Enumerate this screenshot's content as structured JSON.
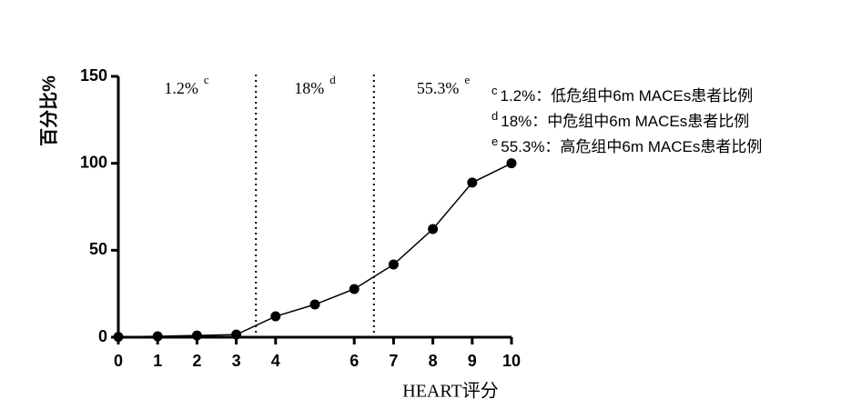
{
  "chart_data": {
    "type": "line",
    "x": [
      0,
      1,
      2,
      3,
      4,
      5,
      6,
      7,
      8,
      9,
      10
    ],
    "series": [
      {
        "color": "#000000",
        "values": [
          0.2,
          0.5,
          1,
          1.5,
          12,
          18.8,
          27.7,
          41.8,
          62.2,
          88.9,
          100
        ]
      }
    ],
    "xlim": [
      0,
      10
    ],
    "xticks": [
      0,
      1,
      2,
      3,
      4,
      6,
      7,
      8,
      9,
      10
    ],
    "ylim": [
      0,
      150
    ],
    "yticks": [
      0,
      50,
      100,
      150
    ],
    "xlabel": "HEART评分",
    "ylabel": "百分比%",
    "dividers": [
      3.5,
      6.5
    ],
    "zone_labels": [
      {
        "text": "1.2%",
        "note": "c"
      },
      {
        "text": "18%",
        "note": "d"
      },
      {
        "text": "55.3%",
        "note": "e"
      }
    ],
    "notes": [
      {
        "mark": "c",
        "text": "1.2%：低危组中6m MACEs患者比例"
      },
      {
        "mark": "d",
        "text": "18%：中危组中6m MACEs患者比例"
      },
      {
        "mark": "e",
        "text": "55.3%：高危组中6m MACEs患者比例"
      }
    ]
  }
}
